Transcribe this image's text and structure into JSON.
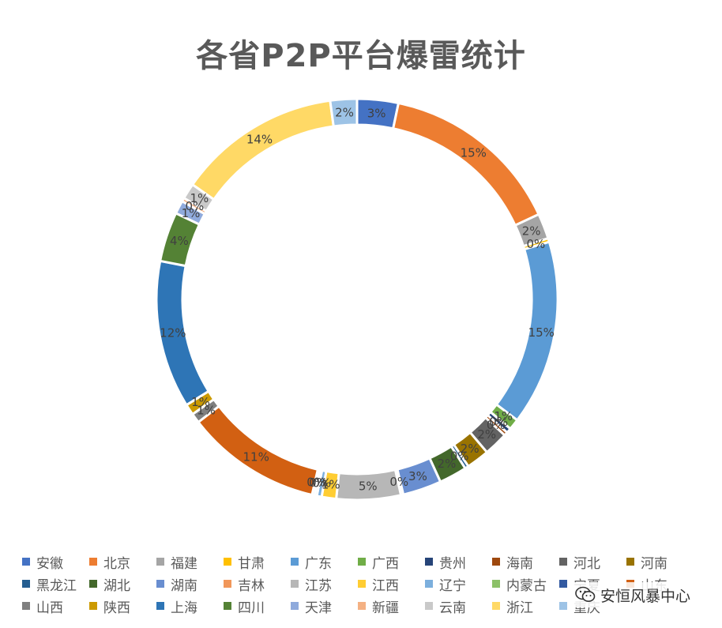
{
  "chart_data": {
    "type": "pie",
    "title": "各省P2P平台爆雷统计",
    "legend_position": "bottom",
    "categories": [
      "安徽",
      "北京",
      "福建",
      "甘肃",
      "广东",
      "广西",
      "贵州",
      "海南",
      "河北",
      "河南",
      "黑龙江",
      "湖北",
      "湖南",
      "吉林",
      "江苏",
      "江西",
      "辽宁",
      "内蒙古",
      "宁夏",
      "山东",
      "山西",
      "陕西",
      "上海",
      "四川",
      "天津",
      "新疆",
      "云南",
      "浙江",
      "重庆"
    ],
    "values": [
      3.4,
      15.1,
      2.1,
      0.3,
      15.3,
      0.9,
      0.4,
      0.3,
      2.0,
      1.9,
      0.3,
      2.3,
      3.2,
      0.2,
      5.3,
      1.2,
      0.4,
      0.2,
      0.2,
      11.2,
      0.8,
      0.9,
      12.2,
      4.1,
      1.1,
      0.3,
      1.3,
      13.5,
      2.2
    ],
    "labels": [
      "3%",
      "15%",
      "2%",
      "0%",
      "15%",
      "1%",
      "0%",
      "0%",
      "2%",
      "2%",
      "0%",
      "2%",
      "3%",
      "0%",
      "5%",
      "1%",
      "0%",
      "0%",
      "0%",
      "11%",
      "1%",
      "1%",
      "12%",
      "4%",
      "1%",
      "0%",
      "1%",
      "14%",
      "2%"
    ],
    "colors": [
      "#4472C4",
      "#ED7D31",
      "#A5A5A5",
      "#FFC000",
      "#5B9BD5",
      "#70AD47",
      "#264478",
      "#9E480E",
      "#636363",
      "#997300",
      "#255E91",
      "#43682B",
      "#698ED0",
      "#F1975A",
      "#B7B7B7",
      "#FFCD33",
      "#7CAFDD",
      "#8CC168",
      "#335AA1",
      "#D26012",
      "#7F7F7F",
      "#CC9A00",
      "#2E75B6",
      "#548235",
      "#8FAADC",
      "#F4B183",
      "#C9C9C9",
      "#FFD966",
      "#9DC3E6"
    ]
  },
  "watermark": {
    "text": "安恒风暴中心",
    "icon": "wechat-icon"
  }
}
